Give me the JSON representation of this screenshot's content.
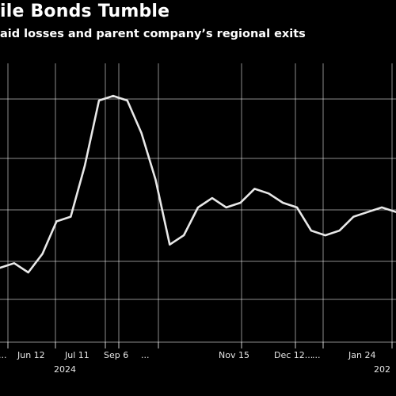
{
  "header": {
    "title": "ile Bonds Tumble",
    "subtitle": "aid losses and parent company’s regional exits"
  },
  "colors": {
    "background": "#000000",
    "line": "#e8e8e8",
    "grid": "#ffffff",
    "text": "#ffffff"
  },
  "chart_data": {
    "type": "line",
    "title": "ile Bonds Tumble",
    "subtitle": "aid losses and parent company’s regional exits",
    "xlabel": "",
    "ylabel": "",
    "grid": true,
    "legend": "none",
    "x_ticks": [
      "...",
      "Jun 12",
      "Jul 11",
      "Sep 6",
      "...",
      "Nov 15",
      "Dec 12...",
      "...",
      "Jan 24"
    ],
    "year_labels": [
      "2024",
      "202"
    ],
    "series": [
      {
        "values": [
          56,
          57,
          55,
          59,
          66,
          67,
          78,
          92,
          93,
          92,
          85,
          75,
          61,
          63,
          69,
          71,
          69,
          70,
          73,
          72,
          70,
          69,
          64,
          63,
          64,
          67,
          68,
          69,
          68
        ]
      }
    ],
    "ylim": [
      40,
      100
    ]
  }
}
